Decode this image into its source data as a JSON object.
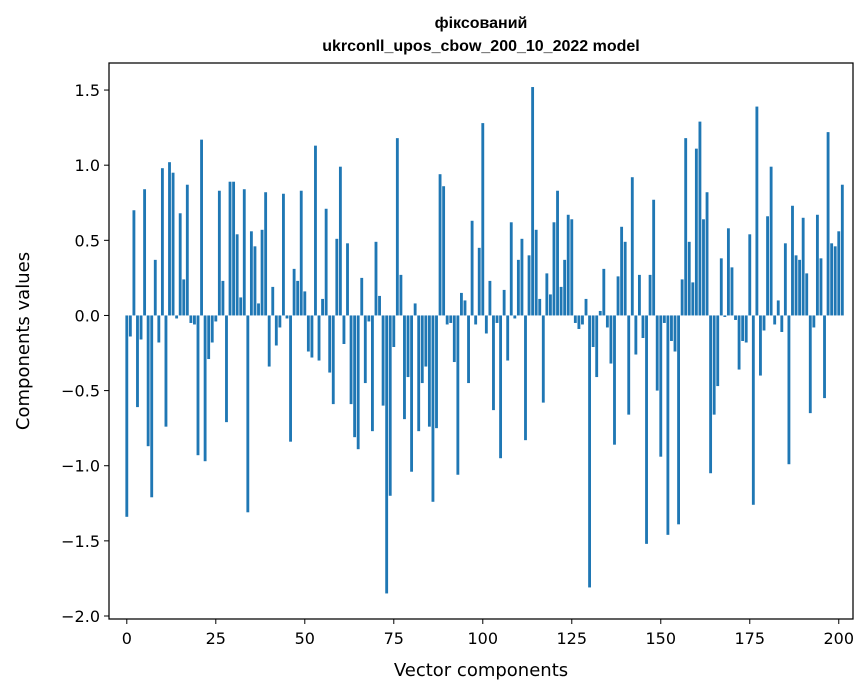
{
  "chart_data": {
    "type": "bar",
    "title": "фіксований",
    "subtitle": "ukrconll_upos_cbow_200_10_2022 model",
    "xlabel": "Vector components",
    "ylabel": "Components values",
    "xlim": [
      -5,
      204
    ],
    "ylim": [
      -2.02,
      1.68
    ],
    "xticks": [
      0,
      25,
      50,
      75,
      100,
      125,
      150,
      175,
      200
    ],
    "xtick_labels": [
      "0",
      "25",
      "50",
      "75",
      "100",
      "125",
      "150",
      "175",
      "200"
    ],
    "yticks": [
      1.5,
      1.0,
      0.5,
      0.0,
      -0.5,
      -1.0,
      -1.5,
      -2.0
    ],
    "ytick_labels": [
      "1.5",
      "1.0",
      "0.5",
      "0.0",
      "−0.5",
      "−1.0",
      "−1.5",
      "−2.0"
    ],
    "bar_color": "#1f77b4",
    "values": [
      -1.34,
      -0.14,
      0.7,
      -0.61,
      -0.16,
      0.84,
      -0.87,
      -1.21,
      0.37,
      -0.18,
      0.98,
      -0.74,
      1.02,
      0.95,
      -0.02,
      0.68,
      0.24,
      0.87,
      -0.05,
      -0.06,
      -0.93,
      1.17,
      -0.97,
      -0.29,
      -0.18,
      -0.04,
      0.83,
      0.23,
      -0.71,
      0.89,
      0.89,
      0.54,
      0.12,
      0.84,
      -1.31,
      0.56,
      0.46,
      0.08,
      0.57,
      0.82,
      -0.34,
      0.19,
      -0.2,
      -0.08,
      0.81,
      -0.02,
      -0.84,
      0.31,
      0.23,
      0.83,
      0.16,
      -0.24,
      -0.28,
      1.13,
      -0.3,
      0.11,
      0.71,
      -0.38,
      -0.59,
      0.51,
      0.99,
      -0.19,
      0.48,
      -0.59,
      -0.81,
      -0.89,
      0.25,
      -0.45,
      -0.04,
      -0.77,
      0.49,
      0.13,
      -0.6,
      -1.85,
      -1.2,
      -0.21,
      1.18,
      0.27,
      -0.69,
      -0.41,
      -1.04,
      0.08,
      -0.77,
      -0.45,
      -0.34,
      -0.74,
      -1.24,
      -0.75,
      0.94,
      0.86,
      -0.06,
      -0.05,
      -0.31,
      -1.06,
      0.15,
      0.1,
      -0.45,
      0.63,
      -0.06,
      0.45,
      1.28,
      -0.12,
      0.23,
      -0.63,
      -0.05,
      -0.95,
      0.17,
      -0.3,
      0.62,
      -0.02,
      0.37,
      0.51,
      -0.83,
      0.4,
      1.52,
      0.57,
      0.11,
      -0.58,
      0.28,
      0.14,
      0.62,
      0.83,
      0.19,
      0.37,
      0.67,
      0.64,
      -0.05,
      -0.09,
      -0.06,
      0.11,
      -1.81,
      -0.21,
      -0.41,
      0.03,
      0.31,
      -0.08,
      -0.32,
      -0.86,
      0.26,
      0.59,
      0.49,
      -0.66,
      0.92,
      -0.26,
      0.27,
      -0.15,
      -1.52,
      0.27,
      0.77,
      -0.5,
      -0.94,
      -0.05,
      -1.46,
      -0.17,
      -0.24,
      -1.39,
      0.24,
      1.18,
      0.49,
      0.22,
      1.11,
      1.29,
      0.64,
      0.82,
      -1.05,
      -0.66,
      -0.47,
      0.38,
      -0.01,
      0.58,
      0.32,
      -0.03,
      -0.36,
      -0.17,
      -0.18,
      0.54,
      -1.26,
      1.39,
      -0.4,
      -0.1,
      0.66,
      0.99,
      -0.06,
      0.1,
      -0.11,
      0.48,
      -0.99,
      0.73,
      0.4,
      0.37,
      0.65,
      0.28,
      -0.65,
      -0.08,
      0.67,
      0.38,
      -0.55,
      1.22,
      0.48,
      0.46,
      0.56,
      0.87
    ]
  }
}
